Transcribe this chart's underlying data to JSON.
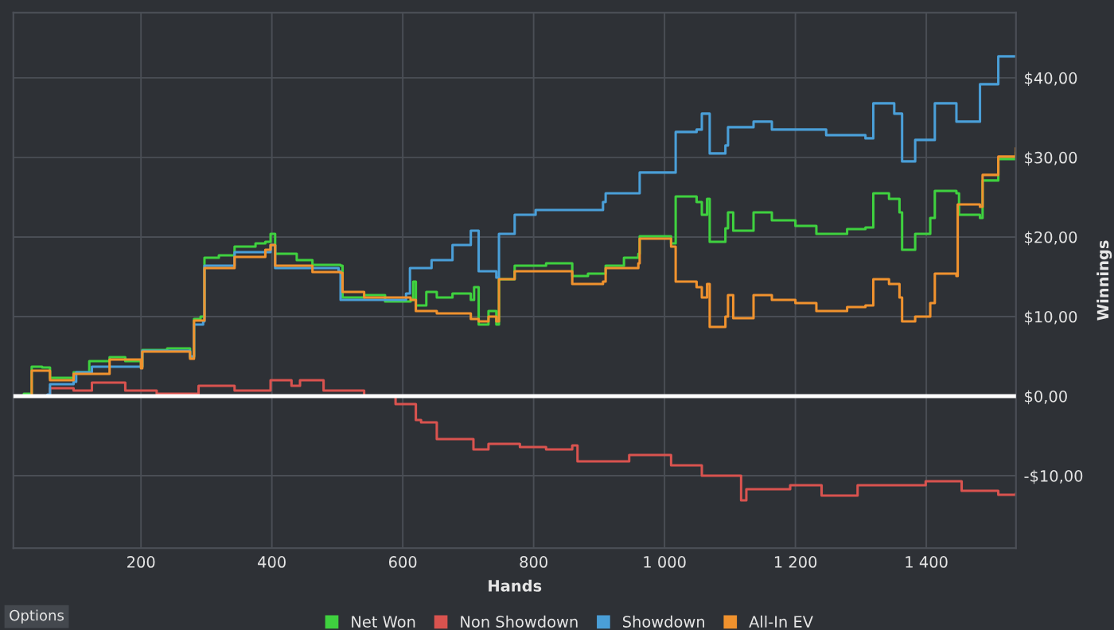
{
  "chart_data": {
    "type": "step",
    "xlabel": "Hands",
    "ylabel": "Winnings",
    "xlim": [
      5,
      1537
    ],
    "ylim": [
      -19.1,
      48.2
    ],
    "xticks": [
      200,
      400,
      600,
      800,
      {
        "value": 1000,
        "label": "1 000"
      },
      {
        "value": 1200,
        "label": "1 200"
      },
      {
        "value": 1400,
        "label": "1 400"
      }
    ],
    "yticks": [
      {
        "value": -10,
        "label": "-$10,00"
      },
      {
        "value": 0,
        "label": "$0,00"
      },
      {
        "value": 10,
        "label": "$10,00"
      },
      {
        "value": 20,
        "label": "$20,00"
      },
      {
        "value": 30,
        "label": "$30,00"
      },
      {
        "value": 40,
        "label": "$40,00"
      }
    ],
    "grid": true,
    "legend": "bottom",
    "marker": "none",
    "line_style": "solid",
    "ref_lines": [
      {
        "axis": "y",
        "value": 0,
        "label": null,
        "color": "#ffffff"
      }
    ],
    "annotations": [
      "Options"
    ],
    "series": [
      {
        "name": "Net Won",
        "color": "#3fd13f",
        "x": [
          5,
          21,
          33,
          49,
          61,
          97,
          121,
          152,
          176,
          200,
          202,
          240,
          275,
          281,
          291,
          297,
          319,
          343,
          375,
          390,
          398,
          405,
          438,
          462,
          505,
          508,
          541,
          573,
          612,
          616,
          620,
          636,
          652,
          676,
          704,
          709,
          716,
          731,
          743,
          747,
          771,
          819,
          859,
          883,
          910,
          938,
          960,
          962,
          1010,
          1017,
          1049,
          1057,
          1065,
          1069,
          1093,
          1097,
          1105,
          1136,
          1164,
          1200,
          1232,
          1279,
          1307,
          1319,
          1343,
          1359,
          1363,
          1383,
          1406,
          1413,
          1446,
          1450,
          1482,
          1486,
          1510,
          1537
        ],
        "values": [
          0,
          0.3,
          3.7,
          3.6,
          2.3,
          3.0,
          4.4,
          4.9,
          4.4,
          3.7,
          5.8,
          6.0,
          4.9,
          9.7,
          10.0,
          17.4,
          17.7,
          18.8,
          19.2,
          19.4,
          20.4,
          17.9,
          17.1,
          16.5,
          16.4,
          12.4,
          12.7,
          11.9,
          12.1,
          14.4,
          11.4,
          13.1,
          12.4,
          12.9,
          12.1,
          13.7,
          9.0,
          10.7,
          9.0,
          14.7,
          16.4,
          16.7,
          15.1,
          15.4,
          16.4,
          17.4,
          17.9,
          20.1,
          19.2,
          25.1,
          24.4,
          22.8,
          24.8,
          19.4,
          21.1,
          23.1,
          20.8,
          23.1,
          22.1,
          21.4,
          20.4,
          21.0,
          21.2,
          25.5,
          24.8,
          23.1,
          18.4,
          20.4,
          22.4,
          25.8,
          25.5,
          22.8,
          22.4,
          27.1,
          29.8,
          30.5
        ]
      },
      {
        "name": "Non Showdown",
        "color": "#d9534f",
        "x": [
          5,
          61,
          97,
          125,
          176,
          224,
          288,
          343,
          398,
          430,
          443,
          479,
          541,
          589,
          620,
          628,
          652,
          708,
          731,
          779,
          819,
          859,
          867,
          946,
          1010,
          1057,
          1105,
          1117,
          1125,
          1192,
          1240,
          1295,
          1399,
          1454,
          1510,
          1537
        ],
        "values": [
          0,
          1.0,
          0.7,
          1.7,
          0.7,
          0.3,
          1.3,
          0.7,
          2.0,
          1.3,
          2.0,
          0.7,
          0,
          -1.0,
          -3.0,
          -3.3,
          -5.4,
          -6.7,
          -6.0,
          -6.4,
          -6.7,
          -6.2,
          -8.2,
          -7.4,
          -8.7,
          -10.0,
          -10.0,
          -13.1,
          -11.7,
          -11.2,
          -12.5,
          -11.2,
          -10.7,
          -11.9,
          -12.4,
          -12.3
        ]
      },
      {
        "name": "Showdown",
        "color": "#4a9fd8",
        "x": [
          5,
          57,
          61,
          97,
          101,
          125,
          200,
          202,
          275,
          281,
          295,
          297,
          343,
          398,
          405,
          502,
          505,
          605,
          611,
          644,
          676,
          704,
          716,
          743,
          747,
          771,
          803,
          883,
          906,
          910,
          962,
          1017,
          1049,
          1057,
          1065,
          1069,
          1093,
          1097,
          1136,
          1164,
          1247,
          1307,
          1319,
          1351,
          1363,
          1383,
          1413,
          1446,
          1482,
          1510,
          1537
        ],
        "values": [
          0,
          0.2,
          1.5,
          1.8,
          3.0,
          3.7,
          3.7,
          5.7,
          5.0,
          9.0,
          9.4,
          16.4,
          18.1,
          19.0,
          16.1,
          15.7,
          12.1,
          12.9,
          16.1,
          17.1,
          19.0,
          20.8,
          15.7,
          14.9,
          20.4,
          22.8,
          23.4,
          23.4,
          24.4,
          25.5,
          28.1,
          33.2,
          33.5,
          35.5,
          35.5,
          30.5,
          31.5,
          33.8,
          34.5,
          33.5,
          32.8,
          32.4,
          36.8,
          35.5,
          29.5,
          32.2,
          36.8,
          34.5,
          39.2,
          42.7,
          42.7
        ]
      },
      {
        "name": "All-In EV",
        "color": "#f0922e",
        "x": [
          5,
          33,
          61,
          97,
          152,
          200,
          202,
          275,
          281,
          297,
          343,
          390,
          398,
          405,
          462,
          505,
          508,
          541,
          612,
          620,
          652,
          704,
          716,
          731,
          743,
          747,
          771,
          819,
          859,
          906,
          910,
          960,
          962,
          1010,
          1017,
          1049,
          1057,
          1065,
          1069,
          1093,
          1097,
          1105,
          1136,
          1164,
          1200,
          1232,
          1279,
          1307,
          1319,
          1343,
          1359,
          1363,
          1383,
          1406,
          1413,
          1446,
          1448,
          1482,
          1486,
          1510,
          1537
        ],
        "values": [
          0,
          3.2,
          2.0,
          2.8,
          4.6,
          3.5,
          5.6,
          4.7,
          9.5,
          16.1,
          17.5,
          18.4,
          19.0,
          16.4,
          15.6,
          15.5,
          13.1,
          12.4,
          12.1,
          10.7,
          10.4,
          9.7,
          9.4,
          10.0,
          9.4,
          14.7,
          15.7,
          15.7,
          14.1,
          14.4,
          16.1,
          16.7,
          19.8,
          18.8,
          14.4,
          13.7,
          12.4,
          14.1,
          8.7,
          10.0,
          12.7,
          9.8,
          12.7,
          12.1,
          11.7,
          10.7,
          11.2,
          11.4,
          14.7,
          14.1,
          12.4,
          9.4,
          10.0,
          11.7,
          15.4,
          15.1,
          24.1,
          23.8,
          27.8,
          30.1,
          31.1
        ]
      }
    ]
  }
}
